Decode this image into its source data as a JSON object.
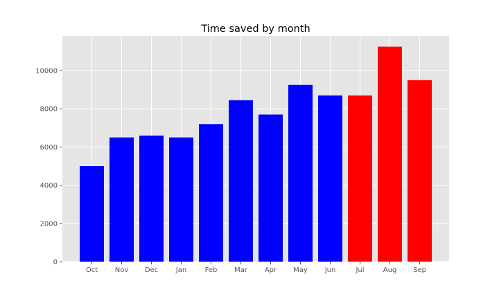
{
  "chart_data": {
    "type": "bar",
    "title": "Time saved by month",
    "xlabel": "",
    "ylabel": "",
    "categories": [
      "Oct",
      "Nov",
      "Dec",
      "Jan",
      "Feb",
      "Mar",
      "Apr",
      "May",
      "Jun",
      "Jul",
      "Aug",
      "Sep"
    ],
    "values": [
      5000,
      6500,
      6600,
      6500,
      7200,
      8450,
      7700,
      9250,
      8700,
      8700,
      11250,
      9500
    ],
    "bar_colors": [
      "#0000ff",
      "#0000ff",
      "#0000ff",
      "#0000ff",
      "#0000ff",
      "#0000ff",
      "#0000ff",
      "#0000ff",
      "#0000ff",
      "#ff0000",
      "#ff0000",
      "#ff0000"
    ],
    "ylim": [
      0,
      11812
    ],
    "yticks": [
      0,
      2000,
      4000,
      6000,
      8000,
      10000
    ],
    "ytick_labels": [
      "0",
      "2000",
      "4000",
      "6000",
      "8000",
      "10000"
    ],
    "grid": true,
    "style": {
      "axes_background": "#e5e5e5",
      "grid_color": "#ffffff",
      "tick_color": "#555555"
    }
  }
}
